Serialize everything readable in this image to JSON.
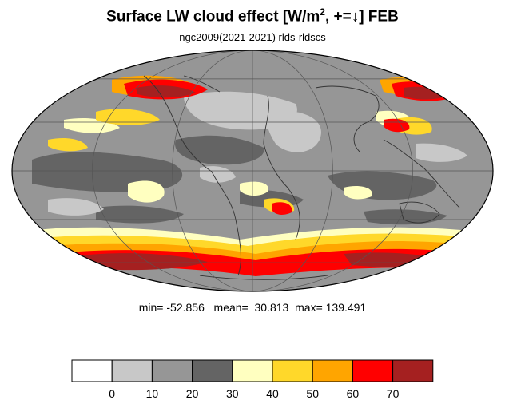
{
  "title": {
    "main_prefix": "Surface LW cloud effect [W/m",
    "superscript": "2",
    "main_suffix": ", +=↓]  FEB"
  },
  "subtitle": "ngc2009(2021-2021)   rlds-rldscs",
  "stats": {
    "min_label": "min=",
    "min": "-52.856",
    "mean_label": "mean=",
    "mean": "30.813",
    "max_label": "max=",
    "max": "139.491"
  },
  "colorbar": {
    "colors": [
      "#ffffff",
      "#c8c8c8",
      "#969696",
      "#646464",
      "#ffffc0",
      "#ffd82a",
      "#ffa500",
      "#ff0000",
      "#a52020"
    ],
    "tick_labels": [
      "0",
      "10",
      "20",
      "30",
      "40",
      "50",
      "60",
      "70"
    ]
  },
  "map": {
    "projection": "mollweide",
    "colors": {
      "light_gray": "#c8c8c8",
      "mid_gray": "#969696",
      "dark_gray": "#646464",
      "pale_yellow": "#ffffc0",
      "yellow": "#ffd82a",
      "orange": "#ffa500",
      "red": "#ff0000",
      "dark_red": "#a52020",
      "coast": "#333333",
      "grid": "#555555"
    }
  }
}
